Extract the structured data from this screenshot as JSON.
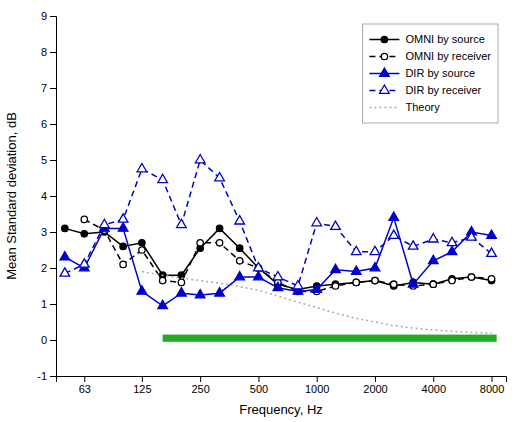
{
  "chart_data": {
    "type": "line",
    "xlabel": "Frequency, Hz",
    "ylabel": "Mean Standard deviation, dB",
    "x": [
      50,
      63,
      80,
      100,
      125,
      160,
      200,
      250,
      315,
      400,
      500,
      630,
      800,
      1000,
      1250,
      1600,
      2000,
      2500,
      3150,
      4000,
      5000,
      6300,
      8000
    ],
    "series": [
      {
        "name": "OMNI by source",
        "color": "#000000",
        "line_style": "solid",
        "marker": "circle",
        "values": [
          3.1,
          2.95,
          3.0,
          2.6,
          2.7,
          1.8,
          1.8,
          2.55,
          3.1,
          2.55,
          2.0,
          1.55,
          1.4,
          1.5,
          1.55,
          1.6,
          1.65,
          1.5,
          1.6,
          1.55,
          1.7,
          1.75,
          1.65
        ]
      },
      {
        "name": "OMNI by receiver",
        "color": "#000000",
        "line_style": "dashed",
        "marker": "open-circle",
        "values": [
          null,
          3.35,
          3.05,
          2.1,
          2.5,
          1.65,
          1.6,
          2.7,
          2.7,
          2.2,
          2.0,
          1.6,
          1.35,
          1.35,
          1.5,
          1.6,
          1.65,
          1.55,
          1.5,
          1.55,
          1.65,
          1.75,
          1.7
        ]
      },
      {
        "name": "DIR by source",
        "color": "#0000cc",
        "line_style": "solid",
        "marker": "triangle",
        "values": [
          2.3,
          2.0,
          3.1,
          3.1,
          1.35,
          0.95,
          1.3,
          1.25,
          1.3,
          1.75,
          1.75,
          1.45,
          1.35,
          1.4,
          1.95,
          1.9,
          2.0,
          3.4,
          1.55,
          2.2,
          2.45,
          3.0,
          2.9
        ]
      },
      {
        "name": "DIR by receiver",
        "color": "#0000cc",
        "line_style": "dashed",
        "marker": "open-triangle",
        "values": [
          1.85,
          2.1,
          3.2,
          3.35,
          4.75,
          4.45,
          3.2,
          5.0,
          4.5,
          3.3,
          2.0,
          1.75,
          1.5,
          3.25,
          3.15,
          2.45,
          2.45,
          2.9,
          2.6,
          2.8,
          2.7,
          2.85,
          2.4
        ]
      },
      {
        "name": "Theory",
        "color": "#aaaaaa",
        "line_style": "dotted",
        "marker": "none",
        "values": [
          null,
          null,
          null,
          null,
          1.9,
          1.8,
          1.72,
          1.65,
          1.58,
          1.48,
          1.38,
          1.22,
          1.05,
          0.9,
          0.75,
          0.6,
          0.5,
          0.4,
          0.33,
          0.28,
          0.24,
          0.21,
          0.19
        ]
      }
    ],
    "band": {
      "x0": 160,
      "x1": 8500,
      "y0": -0.05,
      "height": 0.2,
      "color": "#22aa22"
    },
    "log": "x",
    "xlim": [
      45,
      9500
    ],
    "xticks": [
      63,
      125,
      250,
      500,
      1000,
      2000,
      4000,
      8000
    ],
    "ylim": [
      -1,
      9
    ],
    "yticks": [
      -1,
      0,
      1,
      2,
      3,
      4,
      5,
      6,
      7,
      8,
      9
    ],
    "grid": false,
    "legend": "upper right"
  }
}
